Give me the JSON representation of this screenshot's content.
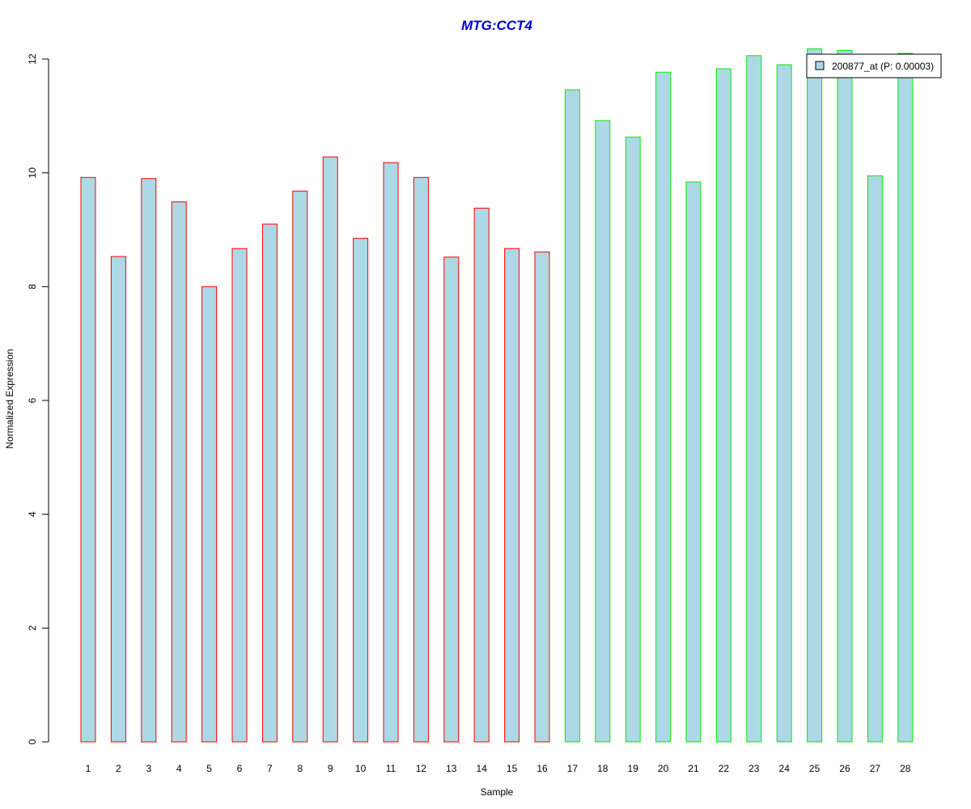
{
  "chart_data": {
    "type": "bar",
    "title": "MTG:CCT4",
    "xlabel": "Sample",
    "ylabel": "Normalized Expression",
    "categories": [
      "1",
      "2",
      "3",
      "4",
      "5",
      "6",
      "7",
      "8",
      "9",
      "10",
      "11",
      "12",
      "13",
      "14",
      "15",
      "16",
      "17",
      "18",
      "19",
      "20",
      "21",
      "22",
      "23",
      "24",
      "25",
      "26",
      "27",
      "28"
    ],
    "values": [
      9.92,
      8.53,
      9.9,
      9.49,
      8.0,
      8.67,
      9.1,
      9.68,
      10.28,
      8.85,
      10.18,
      9.92,
      8.52,
      9.38,
      8.67,
      8.61,
      11.46,
      10.92,
      10.63,
      11.77,
      9.84,
      11.83,
      12.06,
      11.9,
      12.18,
      12.15,
      9.95,
      12.1
    ],
    "group_border_colors": [
      "#ff0000",
      "#ff0000",
      "#ff0000",
      "#ff0000",
      "#ff0000",
      "#ff0000",
      "#ff0000",
      "#ff0000",
      "#ff0000",
      "#ff0000",
      "#ff0000",
      "#ff0000",
      "#ff0000",
      "#ff0000",
      "#ff0000",
      "#ff0000",
      "#00ee00",
      "#00ee00",
      "#00ee00",
      "#00ee00",
      "#00ee00",
      "#00ee00",
      "#00ee00",
      "#00ee00",
      "#00ee00",
      "#00ee00",
      "#00ee00",
      "#00ee00"
    ],
    "bar_fill": "#add8e6",
    "title_color": "#0000cc",
    "ylim": [
      0,
      12
    ],
    "yticks": [
      0,
      2,
      4,
      6,
      8,
      10,
      12
    ],
    "grid": false,
    "legend": {
      "placement": "top-right",
      "entries": [
        {
          "label": "200877_at (P: 0.00003)",
          "color": "#add8e6"
        }
      ]
    }
  }
}
